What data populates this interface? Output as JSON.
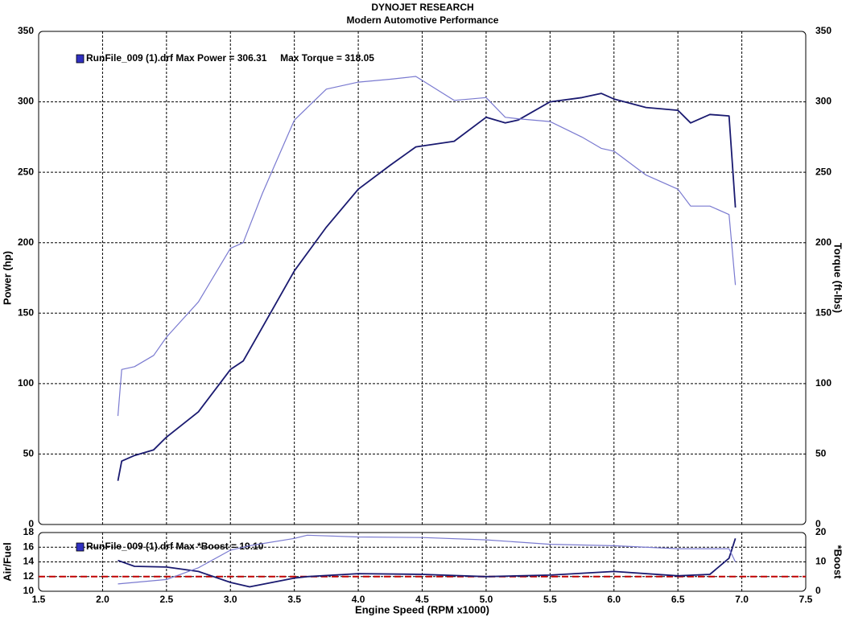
{
  "chart_data": [
    {
      "type": "line",
      "title": "DYNOJET RESEARCH",
      "subtitle": "Modern Automotive Performance",
      "legend": "RunFile_009 (1).drf Max Power = 306.31     Max Torque = 318.05",
      "legend_color": "#3030c0",
      "ylabel": "Power (hp)",
      "y2label": "Torque (ft-lbs)",
      "xlim": [
        1.5,
        7.5
      ],
      "ylim": [
        0,
        350
      ],
      "yticks": [
        0,
        50,
        100,
        150,
        200,
        250,
        300,
        350
      ],
      "y2lim": [
        0,
        350
      ],
      "y2ticks": [
        0,
        50,
        100,
        150,
        200,
        250,
        300,
        350
      ],
      "grid": true,
      "x": [
        2.12,
        2.15,
        2.25,
        2.4,
        2.5,
        2.75,
        3.0,
        3.1,
        3.25,
        3.5,
        3.75,
        4.0,
        4.25,
        4.45,
        4.75,
        5.0,
        5.15,
        5.25,
        5.5,
        5.75,
        5.9,
        6.0,
        6.25,
        6.5,
        6.6,
        6.75,
        6.9,
        6.95
      ],
      "series": [
        {
          "color": "#1a1a70",
          "values": [
            31,
            45,
            49,
            53,
            62,
            80,
            110,
            116,
            140,
            180,
            211,
            238,
            255,
            268,
            272,
            289,
            285,
            287,
            300,
            303,
            306,
            302,
            296,
            294,
            285,
            291,
            290,
            225
          ]
        },
        {
          "color": "#7a7ad0",
          "axis": "y2",
          "values": [
            77,
            110,
            112,
            120,
            133,
            158,
            196,
            200,
            235,
            287,
            309,
            314,
            316,
            318,
            301,
            303,
            289,
            288,
            286,
            275,
            267,
            265,
            248,
            238,
            226,
            226,
            220,
            170
          ]
        }
      ]
    },
    {
      "type": "line",
      "legend": "RunFile_009 (1).drf Max *Boost = 19.10",
      "legend_color": "#3030c0",
      "xlabel": "Engine Speed (RPM x1000)",
      "ylabel": "Air/Fuel",
      "y2label": "*Boost",
      "xlim": [
        1.5,
        7.5
      ],
      "xticks": [
        1.5,
        {
          "value": 2,
          "label": "2.0"
        },
        2.5,
        {
          "value": 3,
          "label": "3.0"
        },
        3.5,
        {
          "value": 4,
          "label": "4.0"
        },
        4.5,
        {
          "value": 5,
          "label": "5.0"
        },
        5.5,
        {
          "value": 6,
          "label": "6.0"
        },
        6.5,
        {
          "value": 7,
          "label": "7.0"
        },
        7.5
      ],
      "ylim": [
        10,
        18
      ],
      "yticks": [
        10,
        12,
        14,
        16,
        18
      ],
      "y2lim": [
        0,
        20
      ],
      "y2ticks": [
        0,
        10,
        20
      ],
      "grid": true,
      "reference_line": {
        "value": 12,
        "color": "#c00000"
      },
      "x": [
        2.12,
        2.25,
        2.5,
        2.75,
        3.0,
        3.15,
        3.5,
        3.6,
        4.0,
        4.5,
        5.0,
        5.5,
        6.0,
        6.5,
        6.75,
        6.9,
        6.95
      ],
      "series": [
        {
          "color": "#1a1a70",
          "values": [
            14.2,
            13.4,
            13.3,
            12.7,
            11.2,
            10.6,
            11.8,
            12.0,
            12.4,
            12.3,
            12.0,
            12.2,
            12.7,
            12.1,
            12.3,
            14.5,
            17.2
          ]
        },
        {
          "color": "#7a7ad0",
          "axis": "y2",
          "values": [
            2.5,
            3,
            4,
            8,
            14,
            15.5,
            18,
            19.1,
            18.5,
            18.3,
            17.5,
            16,
            15.5,
            14.5,
            14.5,
            14.5,
            10
          ]
        }
      ]
    }
  ]
}
